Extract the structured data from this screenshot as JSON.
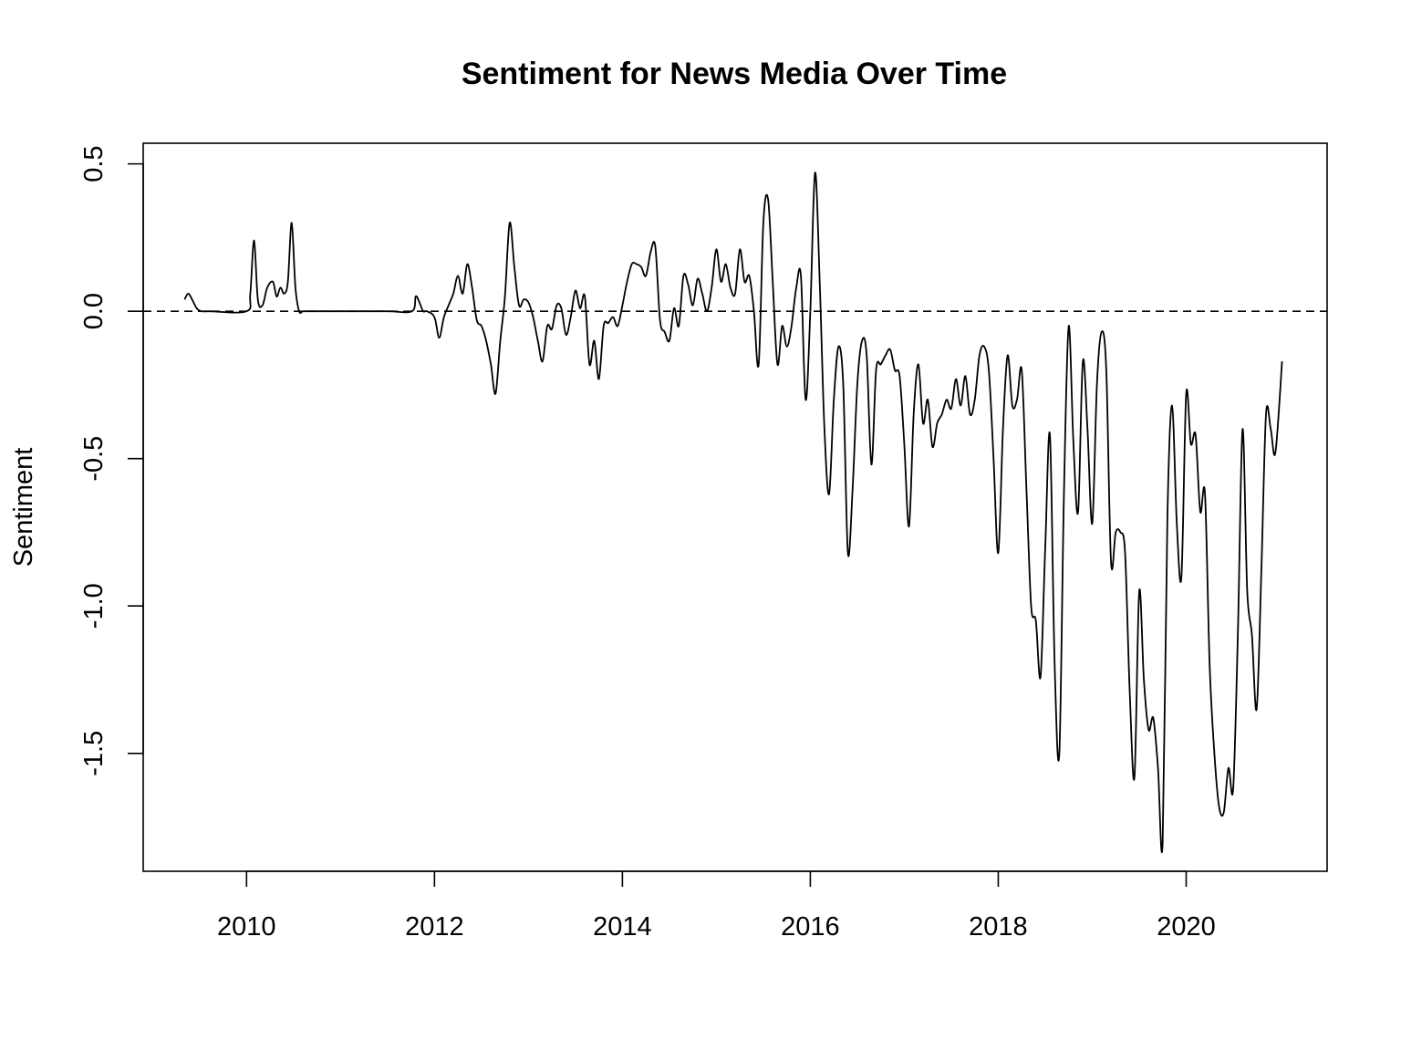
{
  "chart_data": {
    "type": "line",
    "title": "Sentiment for News Media Over Time",
    "xlabel": "",
    "ylabel": "Sentiment",
    "xlim": [
      2008.9,
      2021.5
    ],
    "ylim": [
      -1.9,
      0.57
    ],
    "x_ticks": [
      2010,
      2012,
      2014,
      2016,
      2018,
      2020
    ],
    "x_tick_labels": [
      "2010",
      "2012",
      "2014",
      "2016",
      "2018",
      "2020"
    ],
    "y_ticks": [
      0.5,
      0.0,
      -0.5,
      -1.0,
      -1.5
    ],
    "y_tick_labels": [
      "0.5",
      "0.0",
      "-0.5",
      "-1.0",
      "-1.5"
    ],
    "reference_line": {
      "y": 0.0,
      "style": "dashed"
    },
    "grid": false,
    "legend": "none",
    "series": [
      {
        "x": [
          2009.34,
          2009.38,
          2009.42,
          2009.47,
          2009.52,
          2009.6,
          2010.0,
          2010.04,
          2010.08,
          2010.12,
          2010.17,
          2010.22,
          2010.28,
          2010.32,
          2010.36,
          2010.4,
          2010.44,
          2010.48,
          2010.52,
          2010.56,
          2010.6,
          2010.66,
          2011.0,
          2011.5,
          2011.76,
          2011.8,
          2011.84,
          2011.88,
          2011.92,
          2012.0,
          2012.05,
          2012.1,
          2012.15,
          2012.2,
          2012.25,
          2012.3,
          2012.35,
          2012.4,
          2012.45,
          2012.5,
          2012.55,
          2012.6,
          2012.65,
          2012.7,
          2012.75,
          2012.8,
          2012.85,
          2012.9,
          2012.95,
          2013.0,
          2013.05,
          2013.1,
          2013.15,
          2013.2,
          2013.25,
          2013.3,
          2013.35,
          2013.4,
          2013.45,
          2013.5,
          2013.55,
          2013.6,
          2013.65,
          2013.7,
          2013.75,
          2013.8,
          2013.85,
          2013.9,
          2013.95,
          2014.0,
          2014.05,
          2014.1,
          2014.15,
          2014.2,
          2014.25,
          2014.3,
          2014.35,
          2014.4,
          2014.45,
          2014.5,
          2014.55,
          2014.6,
          2014.65,
          2014.7,
          2014.75,
          2014.8,
          2014.85,
          2014.9,
          2014.95,
          2015.0,
          2015.05,
          2015.1,
          2015.15,
          2015.2,
          2015.25,
          2015.3,
          2015.35,
          2015.4,
          2015.45,
          2015.5,
          2015.55,
          2015.6,
          2015.65,
          2015.7,
          2015.75,
          2015.8,
          2015.85,
          2015.9,
          2015.95,
          2016.0,
          2016.05,
          2016.1,
          2016.15,
          2016.2,
          2016.25,
          2016.3,
          2016.35,
          2016.4,
          2016.45,
          2016.5,
          2016.55,
          2016.6,
          2016.65,
          2016.7,
          2016.75,
          2016.8,
          2016.85,
          2016.9,
          2016.95,
          2017.0,
          2017.05,
          2017.1,
          2017.15,
          2017.2,
          2017.25,
          2017.3,
          2017.35,
          2017.4,
          2017.45,
          2017.5,
          2017.55,
          2017.6,
          2017.65,
          2017.7,
          2017.75,
          2017.8,
          2017.85,
          2017.9,
          2017.95,
          2018.0,
          2018.05,
          2018.1,
          2018.15,
          2018.2,
          2018.25,
          2018.3,
          2018.35,
          2018.4,
          2018.45,
          2018.5,
          2018.55,
          2018.6,
          2018.65,
          2018.7,
          2018.75,
          2018.8,
          2018.85,
          2018.9,
          2018.95,
          2019.0,
          2019.05,
          2019.1,
          2019.15,
          2019.2,
          2019.25,
          2019.3,
          2019.35,
          2019.4,
          2019.45,
          2019.5,
          2019.55,
          2019.6,
          2019.65,
          2019.7,
          2019.75,
          2019.8,
          2019.85,
          2019.9,
          2019.95,
          2020.0,
          2020.05,
          2020.1,
          2020.15,
          2020.2,
          2020.25,
          2020.3,
          2020.35,
          2020.4,
          2020.45,
          2020.5,
          2020.55,
          2020.6,
          2020.65,
          2020.7,
          2020.75,
          2020.8,
          2020.85,
          2020.9,
          2020.95,
          2021.02
        ],
        "values": [
          0.04,
          0.06,
          0.04,
          0.01,
          0.0,
          0.0,
          0.0,
          0.06,
          0.24,
          0.04,
          0.02,
          0.08,
          0.1,
          0.05,
          0.08,
          0.06,
          0.1,
          0.3,
          0.08,
          0.0,
          0.0,
          0.0,
          0.0,
          0.0,
          0.0,
          0.05,
          0.03,
          0.0,
          0.0,
          -0.02,
          -0.09,
          -0.02,
          0.02,
          0.06,
          0.12,
          0.06,
          0.16,
          0.08,
          -0.03,
          -0.05,
          -0.1,
          -0.18,
          -0.28,
          -0.1,
          0.05,
          0.3,
          0.15,
          0.02,
          0.04,
          0.03,
          -0.02,
          -0.1,
          -0.17,
          -0.05,
          -0.06,
          0.02,
          0.01,
          -0.08,
          -0.02,
          0.07,
          0.01,
          0.05,
          -0.18,
          -0.1,
          -0.23,
          -0.05,
          -0.04,
          -0.02,
          -0.05,
          0.02,
          0.1,
          0.16,
          0.16,
          0.15,
          0.12,
          0.2,
          0.22,
          -0.03,
          -0.07,
          -0.1,
          0.01,
          -0.05,
          0.12,
          0.09,
          0.02,
          0.11,
          0.06,
          0.0,
          0.08,
          0.21,
          0.1,
          0.16,
          0.08,
          0.06,
          0.21,
          0.1,
          0.12,
          0.0,
          -0.18,
          0.3,
          0.38,
          0.1,
          -0.18,
          -0.05,
          -0.12,
          -0.05,
          0.08,
          0.12,
          -0.3,
          0.0,
          0.47,
          0.1,
          -0.4,
          -0.62,
          -0.3,
          -0.12,
          -0.25,
          -0.82,
          -0.6,
          -0.25,
          -0.1,
          -0.15,
          -0.52,
          -0.2,
          -0.18,
          -0.15,
          -0.13,
          -0.2,
          -0.22,
          -0.45,
          -0.73,
          -0.35,
          -0.18,
          -0.38,
          -0.3,
          -0.46,
          -0.38,
          -0.35,
          -0.3,
          -0.33,
          -0.23,
          -0.32,
          -0.22,
          -0.35,
          -0.3,
          -0.15,
          -0.12,
          -0.2,
          -0.5,
          -0.82,
          -0.4,
          -0.15,
          -0.32,
          -0.3,
          -0.2,
          -0.6,
          -1.0,
          -1.05,
          -1.24,
          -0.8,
          -0.42,
          -1.2,
          -1.5,
          -0.6,
          -0.05,
          -0.45,
          -0.68,
          -0.17,
          -0.4,
          -0.72,
          -0.25,
          -0.07,
          -0.2,
          -0.85,
          -0.75,
          -0.75,
          -0.82,
          -1.3,
          -1.58,
          -0.95,
          -1.25,
          -1.42,
          -1.38,
          -1.55,
          -1.8,
          -0.7,
          -0.32,
          -0.72,
          -0.9,
          -0.28,
          -0.45,
          -0.42,
          -0.68,
          -0.62,
          -1.2,
          -1.5,
          -1.68,
          -1.7,
          -1.55,
          -1.62,
          -1.1,
          -0.4,
          -0.95,
          -1.1,
          -1.35,
          -0.88,
          -0.35,
          -0.4,
          -0.48,
          -0.17
        ]
      }
    ]
  }
}
